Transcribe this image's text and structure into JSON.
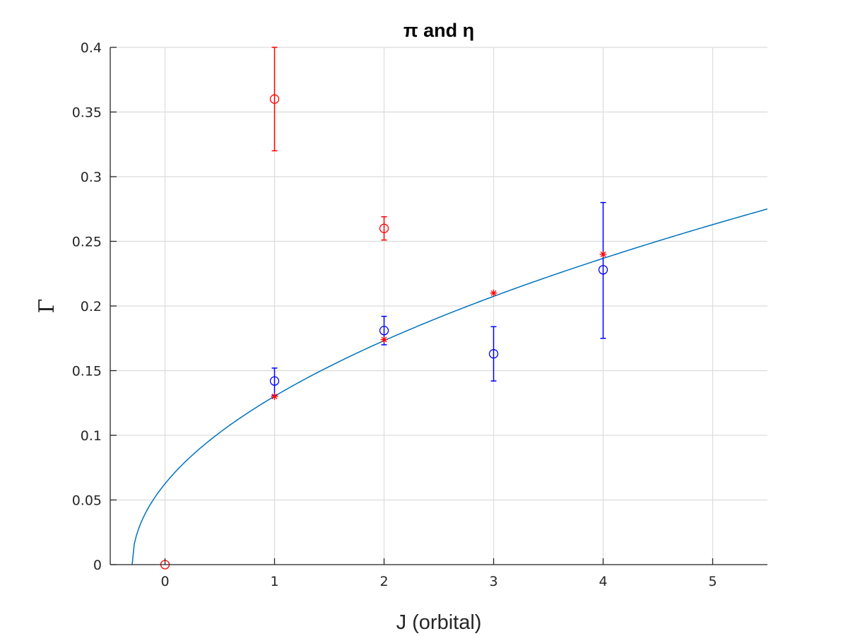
{
  "chart_data": {
    "type": "scatter",
    "title": "π and η",
    "xlabel": "J (orbital)",
    "ylabel": "Γ",
    "xlim": [
      -0.5,
      5.5
    ],
    "ylim": [
      0,
      0.4
    ],
    "xticks": [
      0,
      1,
      2,
      3,
      4,
      5
    ],
    "xtick_labels": [
      "0",
      "1",
      "2",
      "3",
      "4",
      "5"
    ],
    "yticks": [
      0,
      0.05,
      0.1,
      0.15,
      0.2,
      0.25,
      0.3,
      0.35,
      0.4
    ],
    "ytick_labels": [
      "0",
      "0.05",
      "0.1",
      "0.15",
      "0.2",
      "0.25",
      "0.3",
      "0.35",
      "0.4"
    ],
    "grid": true,
    "series": [
      {
        "marker": "circle",
        "color": "#ff0000",
        "points": [
          {
            "x": 0,
            "y": 0.0,
            "err_low": 0.0,
            "err_high": 0.0
          },
          {
            "x": 1,
            "y": 0.36,
            "err_low": 0.04,
            "err_high": 0.04
          },
          {
            "x": 2,
            "y": 0.26,
            "err_low": 0.009,
            "err_high": 0.009
          }
        ]
      },
      {
        "marker": "circle",
        "color": "#0000ff",
        "points": [
          {
            "x": 1,
            "y": 0.142,
            "err_low": 0.011,
            "err_high": 0.01
          },
          {
            "x": 2,
            "y": 0.181,
            "err_low": 0.011,
            "err_high": 0.011
          },
          {
            "x": 3,
            "y": 0.163,
            "err_low": 0.021,
            "err_high": 0.021
          },
          {
            "x": 4,
            "y": 0.228,
            "err_low": 0.053,
            "err_high": 0.052
          }
        ]
      },
      {
        "marker": "asterisk",
        "color": "#ff0000",
        "points": [
          {
            "x": 1,
            "y": 0.13
          },
          {
            "x": 2,
            "y": 0.174
          },
          {
            "x": 3,
            "y": 0.21
          },
          {
            "x": 4,
            "y": 0.24
          }
        ]
      },
      {
        "type": "line",
        "color": "#0072bd",
        "function": "sqrt",
        "x0": -0.3,
        "scale": 0.1142,
        "x_range": [
          -0.3,
          5.5
        ]
      }
    ]
  }
}
